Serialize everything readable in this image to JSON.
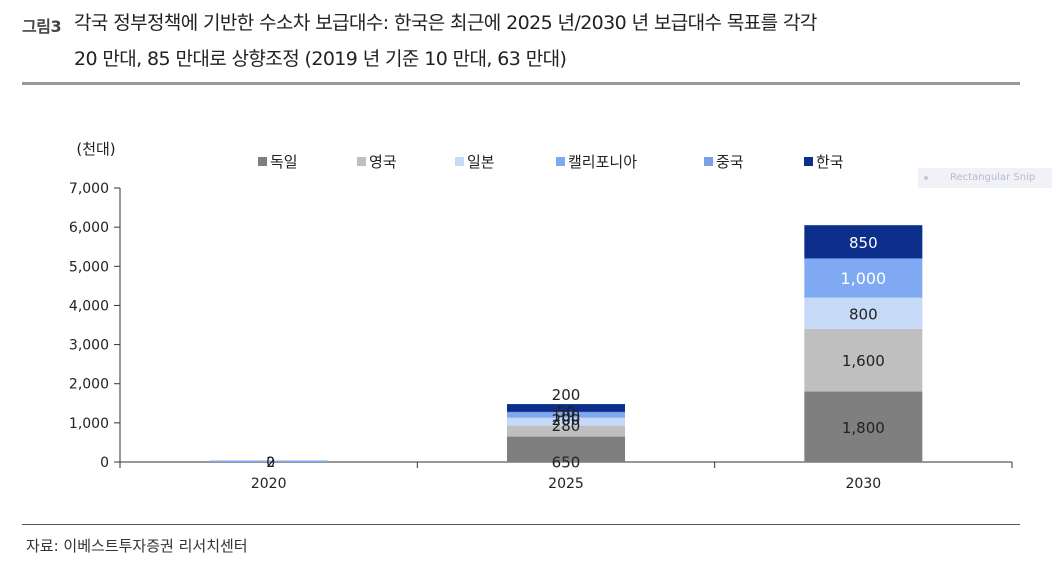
{
  "figure": {
    "label": "그림3",
    "title_line1": "각국 정부정책에 기반한 수소차 보급대수: 한국은 최근에 2025 년/2030 년 보급대수 목표를 각각",
    "title_line2": "20 만대, 85 만대로 상향조정  (2019 년 기준 10 만대, 63 만대)"
  },
  "snip_overlay": {
    "text": "Rectangular Snip"
  },
  "source": "자료:  이베스트투자증권  리서치센터",
  "chart_data": {
    "type": "bar",
    "stacked": true,
    "unit_label": "(천대)",
    "categories": [
      "2020",
      "2025",
      "2030"
    ],
    "ylim": [
      0,
      7000
    ],
    "yticks": [
      0,
      1000,
      2000,
      3000,
      4000,
      5000,
      6000,
      7000
    ],
    "ytick_labels": [
      "0",
      "1,000",
      "2,000",
      "3,000",
      "4,000",
      "5,000",
      "6,000",
      "7,000"
    ],
    "grid": false,
    "legend_position": "top",
    "series": [
      {
        "name": "독일",
        "color": "#7f7f7f",
        "values": [
          0,
          650,
          1800
        ],
        "labels": [
          "",
          "650",
          "1,800"
        ]
      },
      {
        "name": "영국",
        "color": "#bfbfbf",
        "values": [
          0,
          280,
          1600
        ],
        "labels": [
          "",
          "280",
          "1,600"
        ]
      },
      {
        "name": "일본",
        "color": "#c6d9f7",
        "values": [
          0,
          200,
          800
        ],
        "labels": [
          "",
          "200",
          "800"
        ]
      },
      {
        "name": "캘리포니아",
        "color": "#7fa9f2",
        "values": [
          0,
          100,
          1000
        ],
        "labels": [
          "",
          "100",
          "1,000"
        ]
      },
      {
        "name": "중국",
        "color": "#7aa0e8",
        "values": [
          0,
          50,
          0
        ],
        "labels": [
          "",
          "50",
          ""
        ]
      },
      {
        "name": "한국",
        "color": "#0d2f8c",
        "values": [
          0,
          200,
          850
        ],
        "labels": [
          "",
          "200",
          "850"
        ]
      }
    ],
    "extra_labels": [
      {
        "category": "2020",
        "text": "0"
      },
      {
        "category": "2020",
        "text": "2"
      }
    ]
  }
}
